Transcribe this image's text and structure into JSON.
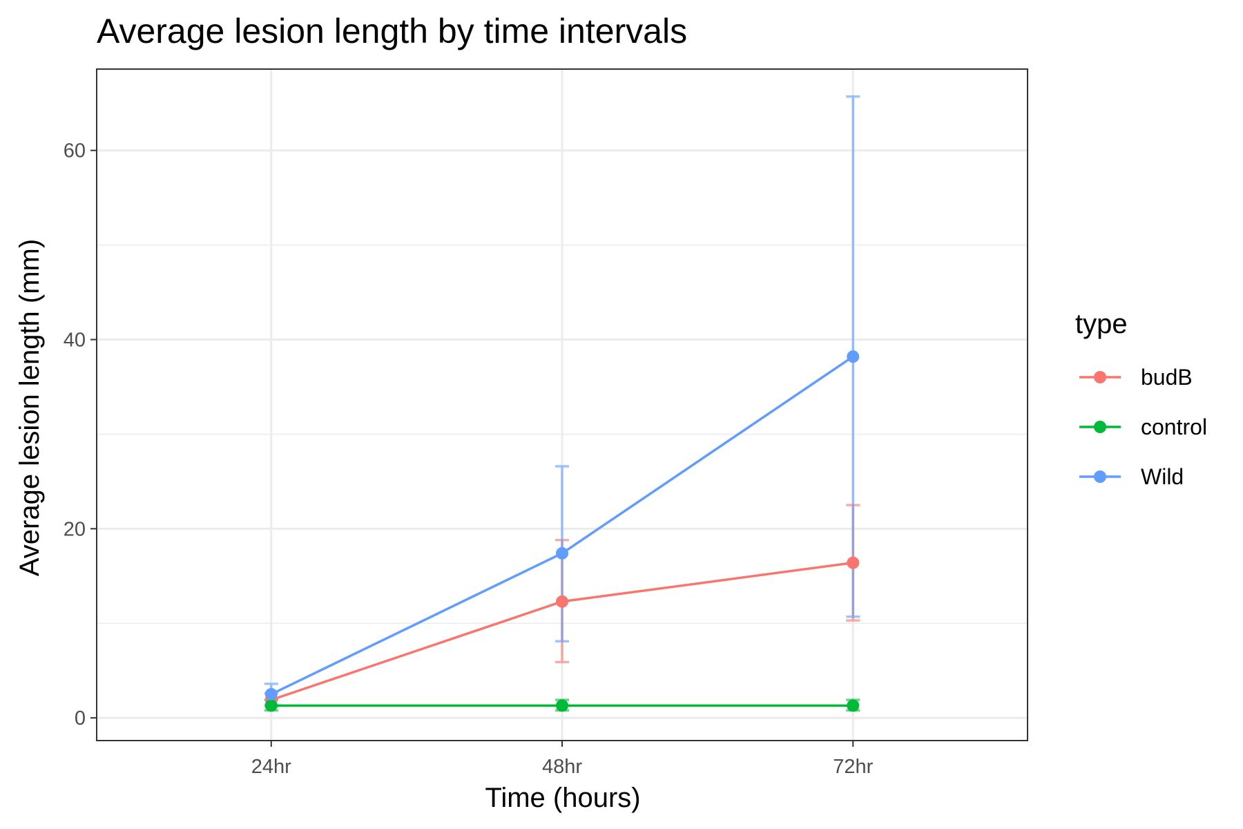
{
  "chart_data": {
    "type": "line",
    "title": "Average lesion length by time intervals",
    "xlabel": "Time (hours)",
    "ylabel": "Average lesion length (mm)",
    "categories": [
      "24hr",
      "48hr",
      "72hr"
    ],
    "ylim": [
      -2.4,
      68.6
    ],
    "yticks": [
      0,
      20,
      40,
      60
    ],
    "grid": true,
    "legend": {
      "title": "type",
      "position": "right"
    },
    "series": [
      {
        "name": "budB",
        "color": "#F8766D",
        "values": [
          1.9,
          12.3,
          16.4
        ],
        "err_low": [
          1.2,
          5.9,
          10.3
        ],
        "err_high": [
          2.6,
          18.8,
          22.5
        ]
      },
      {
        "name": "control",
        "color": "#00BA38",
        "values": [
          1.3,
          1.3,
          1.3
        ],
        "err_low": [
          0.8,
          0.8,
          0.8
        ],
        "err_high": [
          1.9,
          1.9,
          1.9
        ]
      },
      {
        "name": "Wild",
        "color": "#619CFF",
        "values": [
          2.5,
          17.4,
          38.2
        ],
        "err_low": [
          1.4,
          8.1,
          10.7
        ],
        "err_high": [
          3.6,
          26.6,
          65.7
        ]
      }
    ]
  }
}
